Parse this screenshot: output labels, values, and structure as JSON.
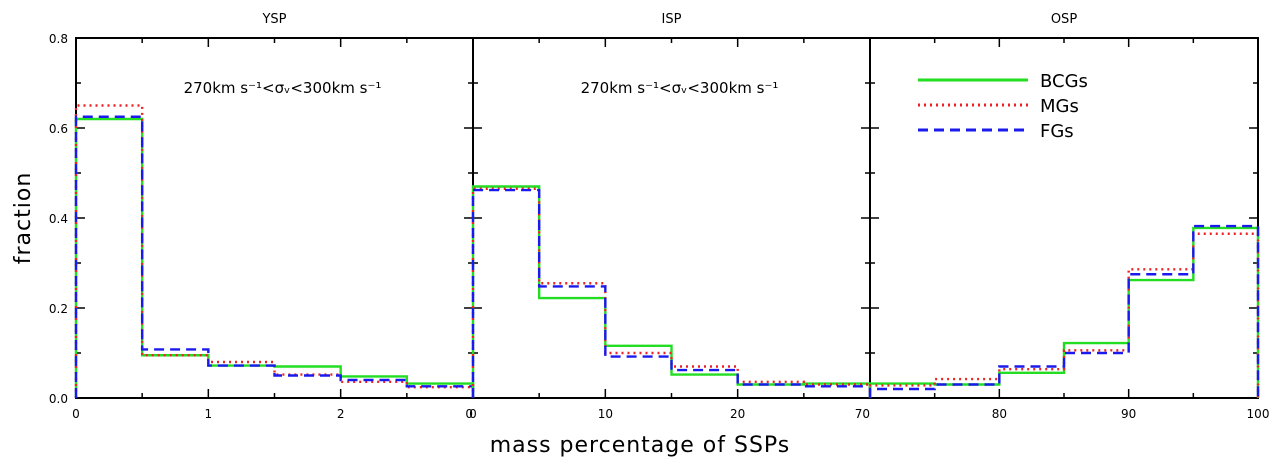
{
  "chart_data": {
    "type": "histogram",
    "ylabel": "fraction",
    "xlabel": "mass percentage of SSPs",
    "ylim": [
      0,
      0.8
    ],
    "yticks": [
      "0.0",
      "0.2",
      "0.4",
      "0.6",
      "0.8"
    ],
    "legend": {
      "placement": "top-right of third panel",
      "entries": [
        {
          "label": "BCGs",
          "color": "#22dd22",
          "style": "solid"
        },
        {
          "label": "MGs",
          "color": "#ee2222",
          "style": "dotted"
        },
        {
          "label": "FGs",
          "color": "#1a1aee",
          "style": "dashed"
        }
      ]
    },
    "panels": [
      {
        "title": "YSP",
        "annotation": "270km s⁻¹<σᵥ<300km s⁻¹",
        "xlim": [
          0,
          3
        ],
        "xticks": [
          "0",
          "1",
          "2",
          "0"
        ],
        "bin_edges": [
          0,
          0.5,
          1,
          1.5,
          2,
          2.5,
          3
        ],
        "series": [
          {
            "name": "BCGs",
            "values": [
              0.62,
              0.095,
              0.072,
              0.07,
              0.048,
              0.032
            ]
          },
          {
            "name": "MGs",
            "values": [
              0.65,
              0.095,
              0.08,
              0.052,
              0.036,
              0.024
            ]
          },
          {
            "name": "FGs",
            "values": [
              0.625,
              0.108,
              0.072,
              0.05,
              0.04,
              0.026
            ]
          }
        ]
      },
      {
        "title": "ISP",
        "annotation": "270km s⁻¹<σᵥ<300km s⁻¹",
        "xlim": [
          0,
          30
        ],
        "xticks": [
          "0",
          "10",
          "20",
          "70"
        ],
        "bin_edges": [
          0,
          5,
          10,
          15,
          20,
          25,
          30
        ],
        "series": [
          {
            "name": "BCGs",
            "values": [
              0.47,
              0.222,
              0.116,
              0.052,
              0.03,
              0.032
            ]
          },
          {
            "name": "MGs",
            "values": [
              0.465,
              0.255,
              0.1,
              0.07,
              0.036,
              0.03
            ]
          },
          {
            "name": "FGs",
            "values": [
              0.462,
              0.248,
              0.092,
              0.062,
              0.03,
              0.026
            ]
          }
        ]
      },
      {
        "title": "OSP",
        "xlim": [
          70,
          100
        ],
        "xticks": [
          "80",
          "90",
          "100"
        ],
        "bin_edges": [
          70,
          75,
          80,
          85,
          90,
          95,
          100
        ],
        "series": [
          {
            "name": "BCGs",
            "values": [
              0.032,
              0.03,
              0.056,
              0.122,
              0.262,
              0.378
            ]
          },
          {
            "name": "MGs",
            "values": [
              0.028,
              0.042,
              0.064,
              0.106,
              0.286,
              0.365
            ]
          },
          {
            "name": "FGs",
            "values": [
              0.02,
              0.03,
              0.07,
              0.1,
              0.275,
              0.382
            ]
          }
        ]
      }
    ]
  }
}
